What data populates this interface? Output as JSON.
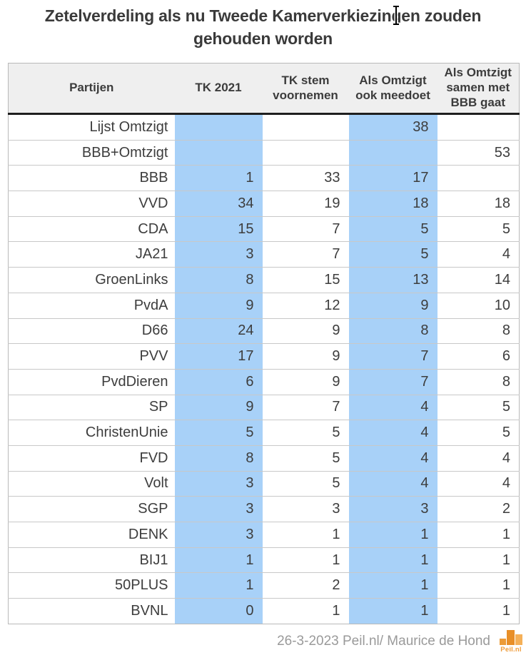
{
  "title": "Zetelverdeling als nu Tweede Kamerverkiezingen zouden gehouden worden",
  "chart_data": {
    "type": "table",
    "title": "Zetelverdeling als nu Tweede Kamerverkiezingen zouden gehouden worden",
    "columns": [
      {
        "label": "Partijen",
        "highlight": false
      },
      {
        "label": "TK 2021",
        "highlight": true
      },
      {
        "label": "TK stem voornemen",
        "highlight": false
      },
      {
        "label": "Als Omtzigt ook meedoet",
        "highlight": true
      },
      {
        "label": "Als Omtzigt samen met BBB gaat",
        "highlight": false
      }
    ],
    "rows": [
      {
        "party": "Lijst Omtzigt",
        "values": [
          "",
          "",
          "38",
          ""
        ]
      },
      {
        "party": "BBB+Omtzigt",
        "values": [
          "",
          "",
          "",
          "53"
        ]
      },
      {
        "party": "BBB",
        "values": [
          "1",
          "33",
          "17",
          ""
        ]
      },
      {
        "party": "VVD",
        "values": [
          "34",
          "19",
          "18",
          "18"
        ]
      },
      {
        "party": "CDA",
        "values": [
          "15",
          "7",
          "5",
          "5"
        ]
      },
      {
        "party": "JA21",
        "values": [
          "3",
          "7",
          "5",
          "4"
        ]
      },
      {
        "party": "GroenLinks",
        "values": [
          "8",
          "15",
          "13",
          "14"
        ]
      },
      {
        "party": "PvdA",
        "values": [
          "9",
          "12",
          "9",
          "10"
        ]
      },
      {
        "party": "D66",
        "values": [
          "24",
          "9",
          "8",
          "8"
        ]
      },
      {
        "party": "PVV",
        "values": [
          "17",
          "9",
          "7",
          "6"
        ]
      },
      {
        "party": "PvdDieren",
        "values": [
          "6",
          "9",
          "7",
          "8"
        ]
      },
      {
        "party": "SP",
        "values": [
          "9",
          "7",
          "4",
          "5"
        ]
      },
      {
        "party": "ChristenUnie",
        "values": [
          "5",
          "5",
          "4",
          "5"
        ]
      },
      {
        "party": "FVD",
        "values": [
          "8",
          "5",
          "4",
          "4"
        ]
      },
      {
        "party": "Volt",
        "values": [
          "3",
          "5",
          "4",
          "4"
        ]
      },
      {
        "party": "SGP",
        "values": [
          "3",
          "3",
          "3",
          "2"
        ]
      },
      {
        "party": "DENK",
        "values": [
          "3",
          "1",
          "1",
          "1"
        ]
      },
      {
        "party": "BIJ1",
        "values": [
          "1",
          "1",
          "1",
          "1"
        ]
      },
      {
        "party": "50PLUS",
        "values": [
          "1",
          "2",
          "1",
          "1"
        ]
      },
      {
        "party": "BVNL",
        "values": [
          "0",
          "1",
          "1",
          "1"
        ]
      }
    ]
  },
  "footer": {
    "credit": "26-3-2023 Peil.nl/ Maurice de Hond",
    "logo_text": "Peil.nl"
  },
  "colors": {
    "highlight_blue": "#a8d1f8",
    "header_bg": "#efefef",
    "header_underline": "#1f1f1f",
    "row_border": "#c8c8c8",
    "text": "#3d3d3d",
    "credit_gray": "#9a9a9a",
    "logo_orange_dark": "#e88f28",
    "logo_orange_mid": "#ec9b38",
    "logo_orange_light": "#f5b058"
  }
}
